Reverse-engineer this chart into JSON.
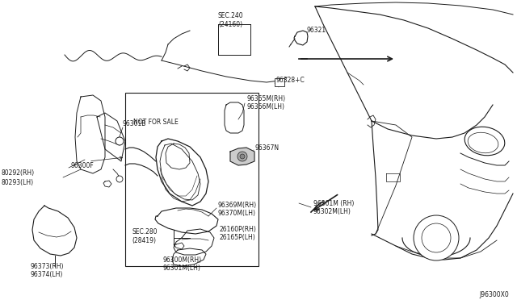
{
  "bg_color": "#ffffff",
  "line_color": "#1a1a1a",
  "text_color": "#1a1a1a",
  "diagram_id": "J96300X0",
  "labels": {
    "sec240": "SEC.240\n(24160)",
    "p96321": "96321",
    "p96328": "96328+C",
    "p96301b": "96301B",
    "p80292": "80292(RH)",
    "p80293": "80293(LH)",
    "p96300f": "96300F",
    "p96365": "96365M(RH)",
    "p96366": "96366M(LH)",
    "notforsale": "NOT FOR SALE",
    "p96367": "96367N",
    "p96369": "96369M(RH)",
    "p96370": "96370M(LH)",
    "sec280": "SEC.280\n(28419)",
    "p26160": "26160P(RH)",
    "p26165": "26165P(LH)",
    "p96300m": "96300M(RH)",
    "p96301m": "96301M(LH)",
    "p96373": "96373(RH)",
    "p96374": "96374(LH)",
    "p96301mr": "96301M (RH)",
    "p96302m": "96302M(LH)"
  }
}
